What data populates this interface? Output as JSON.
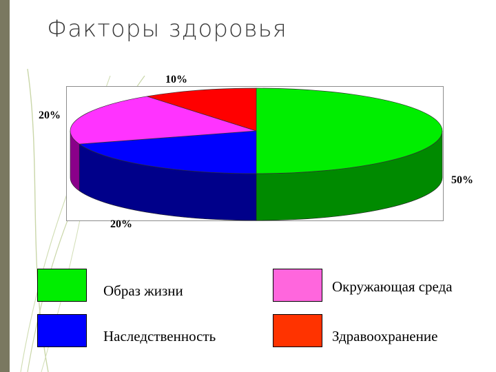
{
  "slide": {
    "title": "Факторы здоровья"
  },
  "chart_data": {
    "type": "pie",
    "title": "",
    "three_d": true,
    "categories": [
      "Образ жизни",
      "Наследственность",
      "Окружающая среда",
      "Здравоохранение"
    ],
    "values": [
      50,
      20,
      20,
      10
    ],
    "value_labels": [
      "50%",
      "20%",
      "20%",
      "10%"
    ],
    "colors": [
      "#00ee00",
      "#0000ff",
      "#ff33ff",
      "#ff0000"
    ],
    "side_colors": [
      "#008a00",
      "#00008a",
      "#8a008a",
      "#8a0000"
    ],
    "legend": [
      {
        "label": "Образ жизни",
        "color": "#00ee00"
      },
      {
        "label": "Окружающая среда",
        "color": "#ff66dd"
      },
      {
        "label": "Наследственность",
        "color": "#0000ff"
      },
      {
        "label": "Здравоохранение",
        "color": "#ff3300"
      }
    ]
  }
}
